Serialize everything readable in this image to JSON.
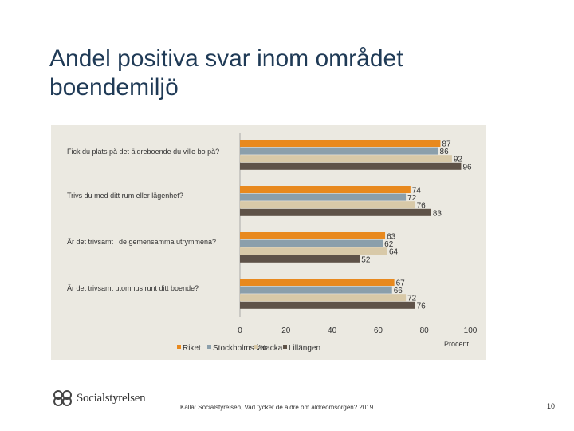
{
  "title": "Andel positiva svar inom området boendemiljö",
  "chart_data": {
    "type": "bar",
    "orientation": "horizontal",
    "categories": [
      "Fick du plats på det äldreboende du ville bo på?",
      "Trivs du med ditt rum eller lägenhet?",
      "Är det trivsamt i de gemensamma utrymmena?",
      "Är det trivsamt utomhus runt ditt boende?"
    ],
    "series": [
      {
        "name": "Riket",
        "color": "#e8891e",
        "values": [
          87,
          74,
          63,
          67
        ]
      },
      {
        "name": "Stockholms län",
        "color": "#8b9fab",
        "values": [
          86,
          72,
          62,
          66
        ]
      },
      {
        "name": "Nacka",
        "color": "#d8c9a8",
        "values": [
          92,
          76,
          64,
          72
        ]
      },
      {
        "name": "Lillängen",
        "color": "#5e5248",
        "values": [
          96,
          83,
          52,
          76
        ]
      }
    ],
    "xlim": [
      0,
      100
    ],
    "xticks": [
      "0",
      "20",
      "40",
      "60",
      "80",
      "100"
    ],
    "xlabel": "Procent",
    "legend_position": "bottom-left"
  },
  "footer": {
    "logo_text": "Socialstyrelsen",
    "source": "Källa: Socialstyrelsen, Vad tycker de äldre om äldreomsorgen? 2019",
    "page": "10"
  }
}
